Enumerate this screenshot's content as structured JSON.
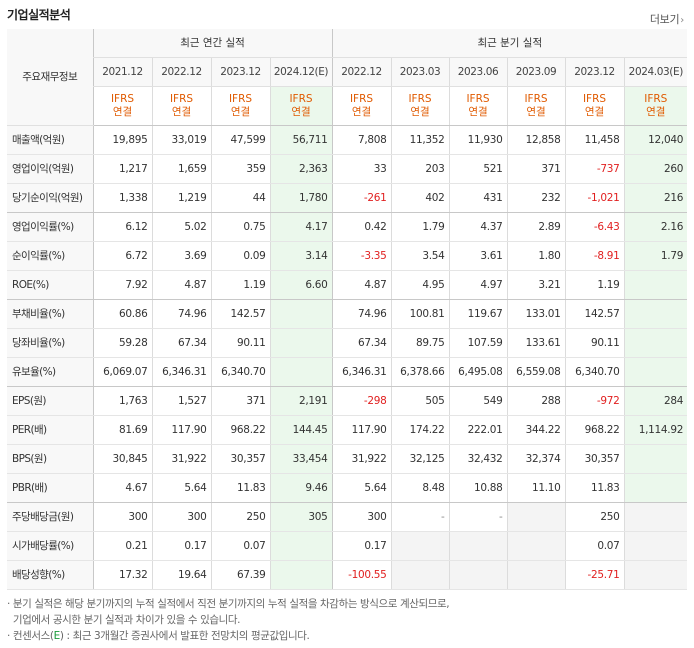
{
  "title": "기업실적분석",
  "more_label": "더보기",
  "header": {
    "label": "주요재무정보",
    "group_annual": "최근 연간 실적",
    "group_quarter": "최근 분기 실적",
    "periods": [
      "2021.12",
      "2022.12",
      "2023.12",
      "2024.12(E)",
      "2022.12",
      "2023.03",
      "2023.06",
      "2023.09",
      "2023.12",
      "2024.03(E)"
    ],
    "ifrs_top": "IFRS",
    "ifrs_bottom": "연결"
  },
  "rows": [
    {
      "label": "매출액(억원)",
      "values": [
        "19,895",
        "33,019",
        "47,599",
        "56,711",
        "7,808",
        "11,352",
        "11,930",
        "12,858",
        "11,458",
        "12,040"
      ]
    },
    {
      "label": "영업이익(억원)",
      "values": [
        "1,217",
        "1,659",
        "359",
        "2,363",
        "33",
        "203",
        "521",
        "371",
        "-737",
        "260"
      ]
    },
    {
      "label": "당기순이익(억원)",
      "values": [
        "1,338",
        "1,219",
        "44",
        "1,780",
        "-261",
        "402",
        "431",
        "232",
        "-1,021",
        "216"
      ]
    },
    {
      "label": "영업이익률(%)",
      "values": [
        "6.12",
        "5.02",
        "0.75",
        "4.17",
        "0.42",
        "1.79",
        "4.37",
        "2.89",
        "-6.43",
        "2.16"
      ]
    },
    {
      "label": "순이익률(%)",
      "values": [
        "6.72",
        "3.69",
        "0.09",
        "3.14",
        "-3.35",
        "3.54",
        "3.61",
        "1.80",
        "-8.91",
        "1.79"
      ]
    },
    {
      "label": "ROE(%)",
      "values": [
        "7.92",
        "4.87",
        "1.19",
        "6.60",
        "4.87",
        "4.95",
        "4.97",
        "3.21",
        "1.19",
        ""
      ]
    },
    {
      "label": "부채비율(%)",
      "values": [
        "60.86",
        "74.96",
        "142.57",
        "",
        "74.96",
        "100.81",
        "119.67",
        "133.01",
        "142.57",
        ""
      ]
    },
    {
      "label": "당좌비율(%)",
      "values": [
        "59.28",
        "67.34",
        "90.11",
        "",
        "67.34",
        "89.75",
        "107.59",
        "133.61",
        "90.11",
        ""
      ]
    },
    {
      "label": "유보율(%)",
      "values": [
        "6,069.07",
        "6,346.31",
        "6,340.70",
        "",
        "6,346.31",
        "6,378.66",
        "6,495.08",
        "6,559.08",
        "6,340.70",
        ""
      ]
    },
    {
      "label": "EPS(원)",
      "values": [
        "1,763",
        "1,527",
        "371",
        "2,191",
        "-298",
        "505",
        "549",
        "288",
        "-972",
        "284"
      ]
    },
    {
      "label": "PER(배)",
      "values": [
        "81.69",
        "117.90",
        "968.22",
        "144.45",
        "117.90",
        "174.22",
        "222.01",
        "344.22",
        "968.22",
        "1,114.92"
      ]
    },
    {
      "label": "BPS(원)",
      "values": [
        "30,845",
        "31,922",
        "30,357",
        "33,454",
        "31,922",
        "32,125",
        "32,432",
        "32,374",
        "30,357",
        ""
      ]
    },
    {
      "label": "PBR(배)",
      "values": [
        "4.67",
        "5.64",
        "11.83",
        "9.46",
        "5.64",
        "8.48",
        "10.88",
        "11.10",
        "11.83",
        ""
      ]
    },
    {
      "label": "주당배당금(원)",
      "values": [
        "300",
        "300",
        "250",
        "305",
        "300",
        "-",
        "-",
        "",
        "250",
        ""
      ]
    },
    {
      "label": "시가배당률(%)",
      "values": [
        "0.21",
        "0.17",
        "0.07",
        "",
        "0.17",
        "",
        "",
        "",
        "0.07",
        ""
      ]
    },
    {
      "label": "배당성향(%)",
      "values": [
        "17.32",
        "19.64",
        "67.39",
        "",
        "-100.55",
        "",
        "",
        "",
        "-25.71",
        ""
      ]
    }
  ],
  "notes": {
    "line1": "· 분기 실적은 해당 분기까지의 누적 실적에서 직전 분기까지의 누적 실적을 차감하는 방식으로 계산되므로,",
    "line2": "  기업에서 공시한 분기 실적과 차이가 있을 수 있습니다.",
    "line3_prefix": "· 컨센서스(",
    "line3_mark": "E",
    "line3_suffix": ") : 최근 3개월간 증권사에서 발표한 전망치의 평균값입니다."
  },
  "colors": {
    "negative": "#e12020",
    "ifrs": "#e05a00",
    "estimate_bg": "#ebf8ec"
  }
}
